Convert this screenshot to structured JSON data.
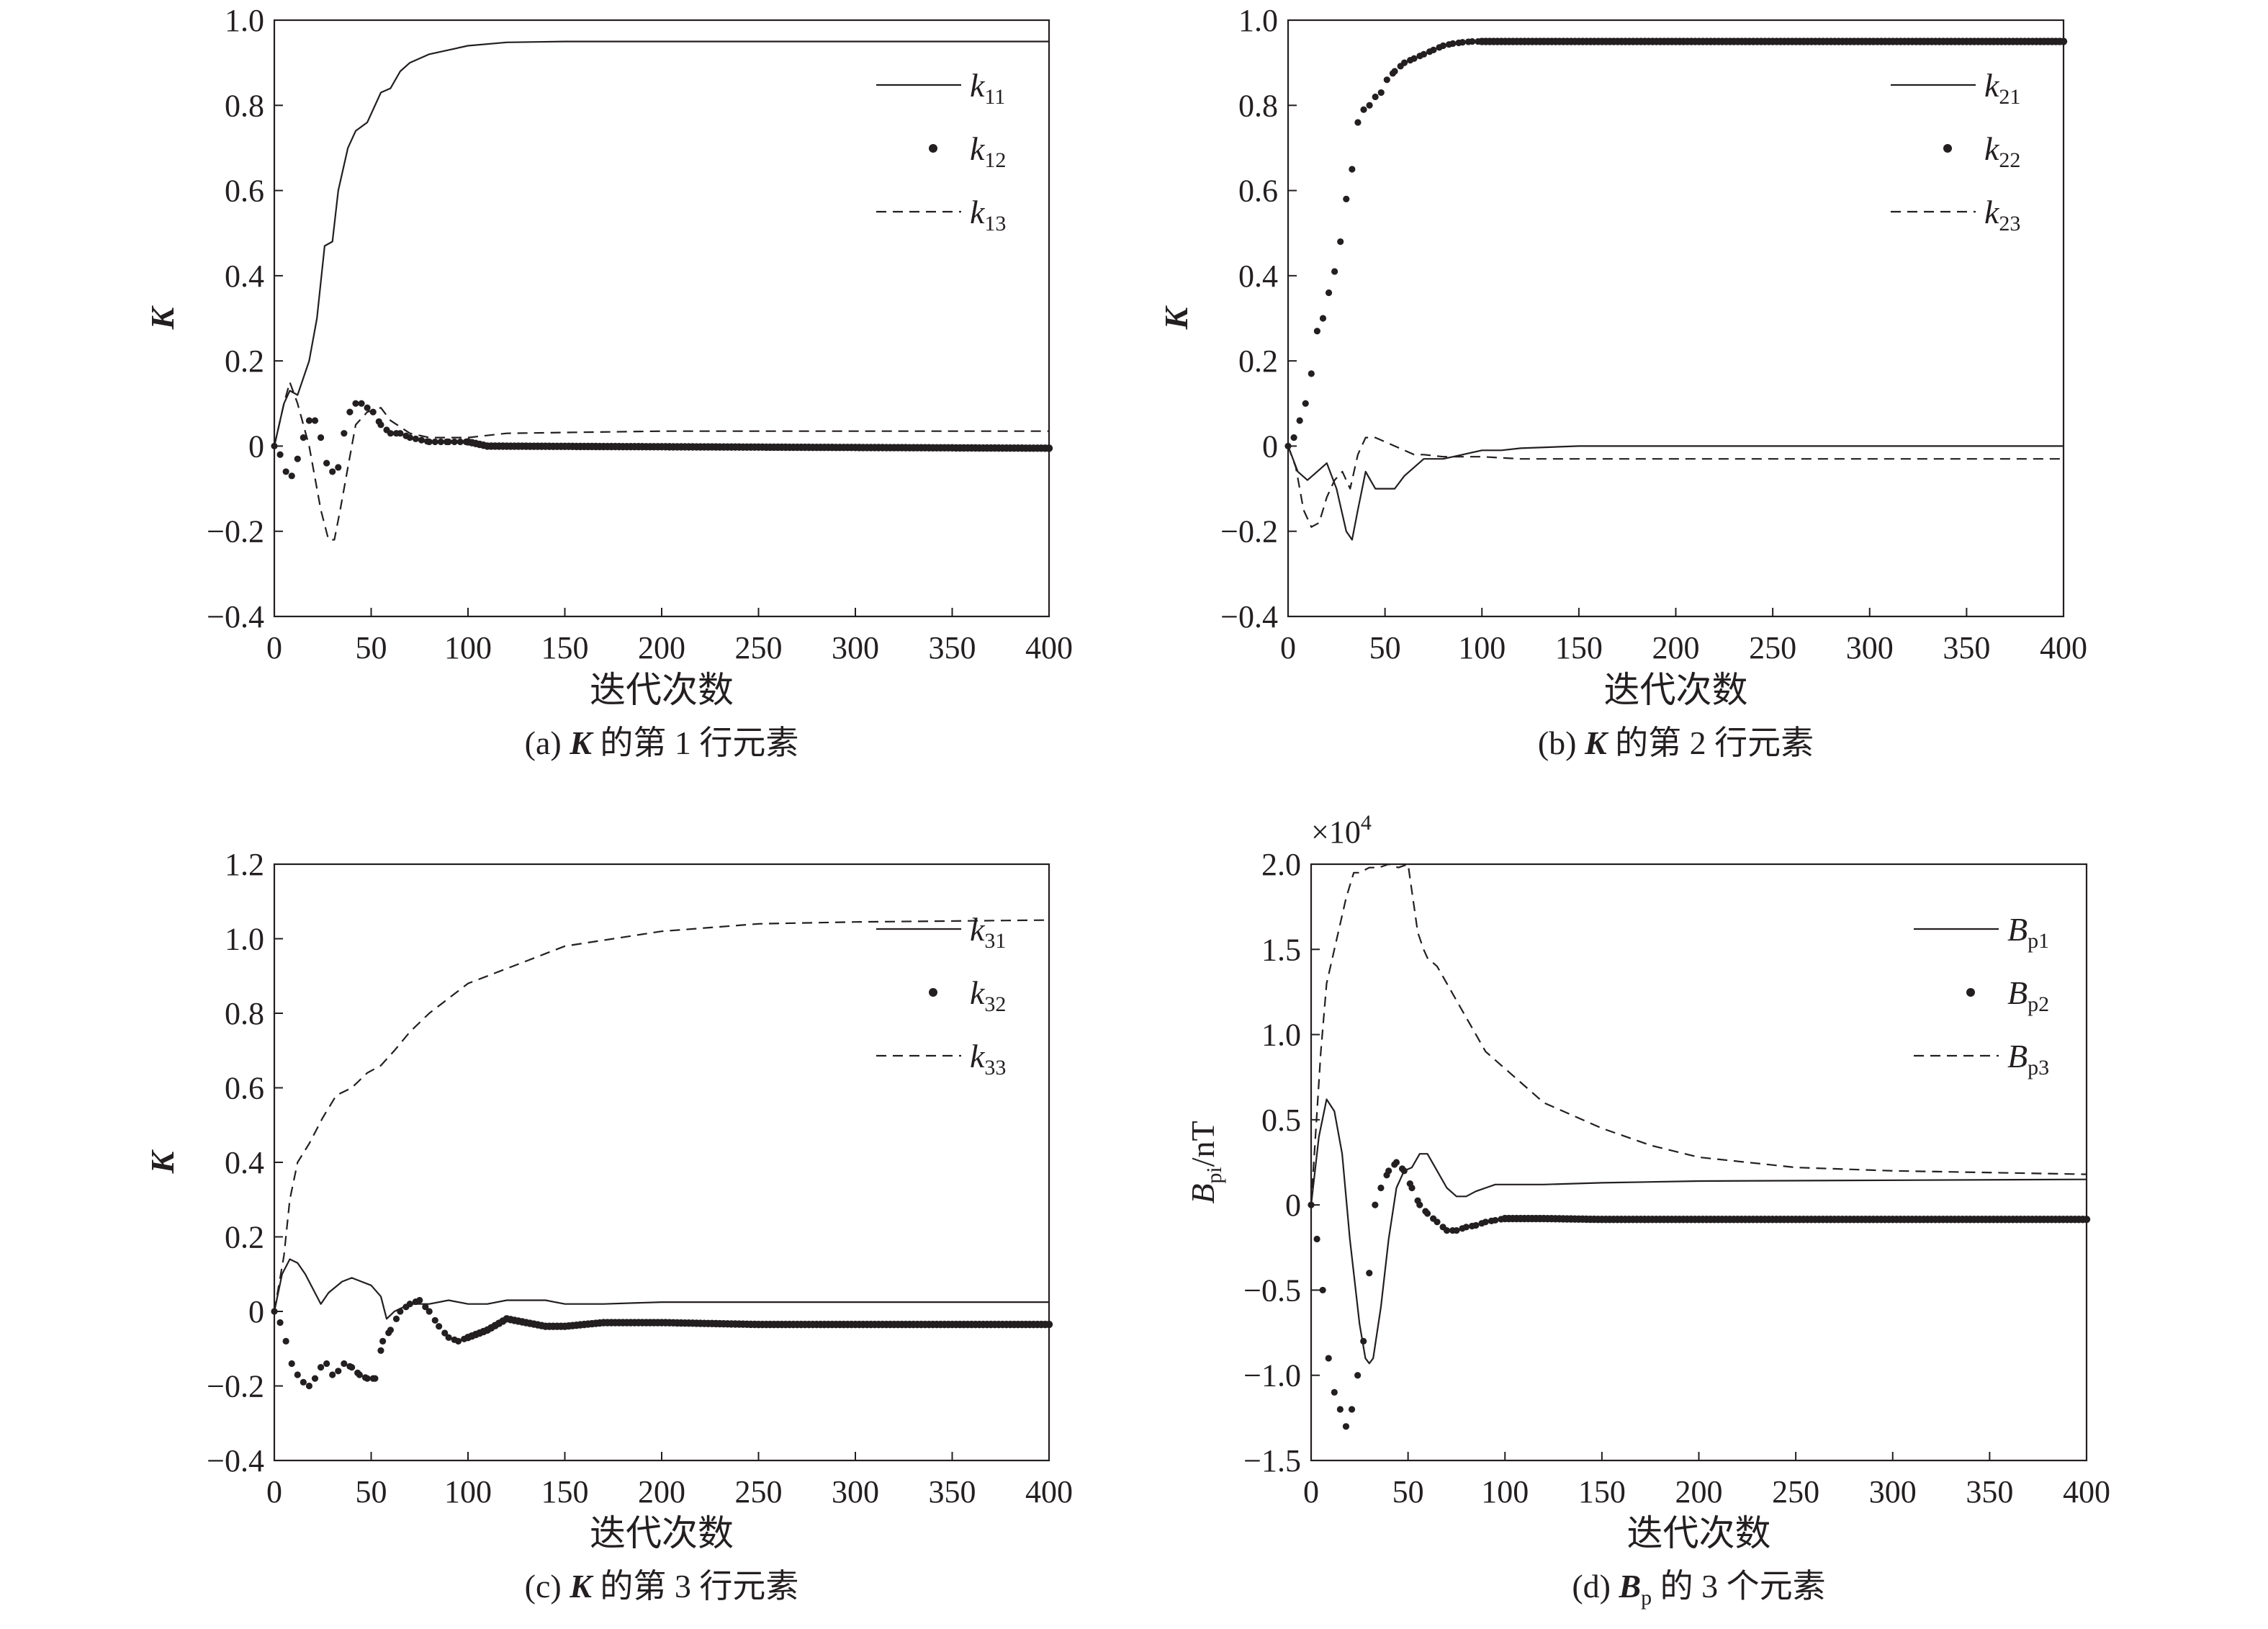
{
  "chart_data": [
    {
      "type": "line",
      "caption": {
        "pre": "(a) ",
        "bold": "K",
        "post": " 的第 1 行元素"
      },
      "xlabel": "迭代次数",
      "ylabel": "K",
      "xlim": [
        0,
        400
      ],
      "ylim": [
        -0.4,
        1.0
      ],
      "xticks": [
        0,
        50,
        100,
        150,
        200,
        250,
        300,
        350,
        400
      ],
      "yticks": [
        1.0,
        0.8,
        0.6,
        0.4,
        0.2,
        0,
        -0.2,
        -0.4
      ],
      "ytick_labels": [
        "1.0",
        "0.8",
        "0.6",
        "0.4",
        "0.2",
        "0",
        "−0.2",
        "−0.4"
      ],
      "legend_position": "top-right",
      "series": [
        {
          "name": "k",
          "sub": "11",
          "style": "solid",
          "x": [
            0,
            5,
            8,
            12,
            18,
            22,
            26,
            30,
            33,
            38,
            42,
            48,
            55,
            60,
            65,
            70,
            80,
            90,
            100,
            120,
            150,
            200,
            400
          ],
          "y": [
            0,
            0.1,
            0.13,
            0.12,
            0.2,
            0.3,
            0.47,
            0.48,
            0.6,
            0.7,
            0.74,
            0.76,
            0.83,
            0.84,
            0.88,
            0.9,
            0.92,
            0.93,
            0.94,
            0.948,
            0.95,
            0.95,
            0.95
          ]
        },
        {
          "name": "k",
          "sub": "12",
          "style": "dots",
          "x": [
            0,
            3,
            6,
            9,
            12,
            15,
            18,
            21,
            24,
            27,
            30,
            33,
            36,
            39,
            42,
            45,
            48,
            51,
            55,
            60,
            65,
            70,
            80,
            90,
            100,
            110,
            400
          ],
          "y": [
            0,
            -0.02,
            -0.06,
            -0.07,
            -0.03,
            0.02,
            0.06,
            0.06,
            0.02,
            -0.04,
            -0.06,
            -0.05,
            0.03,
            0.08,
            0.1,
            0.1,
            0.09,
            0.08,
            0.05,
            0.03,
            0.03,
            0.02,
            0.01,
            0.01,
            0.01,
            0.0,
            -0.005
          ]
        },
        {
          "name": "k",
          "sub": "13",
          "style": "dashed",
          "x": [
            0,
            5,
            8,
            12,
            18,
            24,
            28,
            31,
            34,
            38,
            42,
            48,
            55,
            60,
            70,
            80,
            100,
            120,
            200,
            400
          ],
          "y": [
            0,
            0.1,
            0.15,
            0.1,
            0.0,
            -0.15,
            -0.22,
            -0.22,
            -0.15,
            -0.05,
            0.05,
            0.08,
            0.09,
            0.06,
            0.03,
            0.02,
            0.02,
            0.03,
            0.035,
            0.035
          ]
        }
      ]
    },
    {
      "type": "line",
      "caption": {
        "pre": "(b) ",
        "bold": "K",
        "post": " 的第 2 行元素"
      },
      "xlabel": "迭代次数",
      "ylabel": "K",
      "xlim": [
        0,
        400
      ],
      "ylim": [
        -0.4,
        1.0
      ],
      "xticks": [
        0,
        50,
        100,
        150,
        200,
        250,
        300,
        350,
        400
      ],
      "yticks": [
        1.0,
        0.8,
        0.6,
        0.4,
        0.2,
        0,
        -0.2,
        -0.4
      ],
      "ytick_labels": [
        "1.0",
        "0.8",
        "0.6",
        "0.4",
        "0.2",
        "0",
        "−0.2",
        "−0.4"
      ],
      "legend_position": "top-right",
      "series": [
        {
          "name": "k",
          "sub": "21",
          "style": "solid",
          "x": [
            0,
            5,
            10,
            15,
            20,
            25,
            30,
            33,
            36,
            40,
            45,
            50,
            55,
            60,
            70,
            80,
            90,
            100,
            110,
            120,
            150,
            400
          ],
          "y": [
            0,
            -0.06,
            -0.08,
            -0.06,
            -0.04,
            -0.1,
            -0.2,
            -0.22,
            -0.15,
            -0.06,
            -0.1,
            -0.1,
            -0.1,
            -0.07,
            -0.03,
            -0.03,
            -0.02,
            -0.01,
            -0.01,
            -0.005,
            0.0,
            0.0
          ]
        },
        {
          "name": "k",
          "sub": "22",
          "style": "dots",
          "x": [
            0,
            3,
            6,
            9,
            12,
            15,
            18,
            21,
            24,
            27,
            30,
            33,
            36,
            39,
            42,
            45,
            48,
            51,
            55,
            60,
            65,
            70,
            75,
            80,
            85,
            90,
            95,
            100,
            110,
            120,
            400
          ],
          "y": [
            0,
            0.02,
            0.06,
            0.1,
            0.17,
            0.27,
            0.3,
            0.36,
            0.41,
            0.48,
            0.58,
            0.65,
            0.76,
            0.79,
            0.8,
            0.82,
            0.83,
            0.86,
            0.88,
            0.9,
            0.91,
            0.92,
            0.93,
            0.94,
            0.945,
            0.948,
            0.95,
            0.95,
            0.95,
            0.95,
            0.95
          ]
        },
        {
          "name": "k",
          "sub": "23",
          "style": "dashed",
          "x": [
            0,
            4,
            8,
            12,
            16,
            20,
            24,
            28,
            32,
            36,
            40,
            45,
            50,
            55,
            60,
            65,
            70,
            80,
            100,
            120,
            400
          ],
          "y": [
            0,
            -0.05,
            -0.15,
            -0.19,
            -0.18,
            -0.12,
            -0.08,
            -0.06,
            -0.1,
            -0.02,
            0.02,
            0.02,
            0.01,
            0.0,
            -0.01,
            -0.02,
            -0.02,
            -0.025,
            -0.025,
            -0.03,
            -0.03
          ]
        }
      ]
    },
    {
      "type": "line",
      "caption": {
        "pre": "(c) ",
        "bold": "K",
        "post": " 的第 3 行元素"
      },
      "xlabel": "迭代次数",
      "ylabel": "K",
      "xlim": [
        0,
        400
      ],
      "ylim": [
        -0.4,
        1.2
      ],
      "xticks": [
        0,
        50,
        100,
        150,
        200,
        250,
        300,
        350,
        400
      ],
      "yticks": [
        1.2,
        1.0,
        0.8,
        0.6,
        0.4,
        0.2,
        0,
        -0.2,
        -0.4
      ],
      "ytick_labels": [
        "1.2",
        "1.0",
        "0.8",
        "0.6",
        "0.4",
        "0.2",
        "0",
        "−0.2",
        "−0.4"
      ],
      "legend_position": "top-right",
      "series": [
        {
          "name": "k",
          "sub": "31",
          "style": "solid",
          "x": [
            0,
            4,
            8,
            12,
            16,
            20,
            24,
            28,
            35,
            40,
            45,
            50,
            55,
            58,
            62,
            70,
            80,
            90,
            100,
            110,
            120,
            130,
            140,
            150,
            170,
            200,
            400
          ],
          "y": [
            0,
            0.1,
            0.14,
            0.13,
            0.1,
            0.06,
            0.02,
            0.05,
            0.08,
            0.09,
            0.08,
            0.07,
            0.04,
            -0.02,
            0.0,
            0.02,
            0.02,
            0.03,
            0.02,
            0.02,
            0.03,
            0.03,
            0.03,
            0.02,
            0.02,
            0.025,
            0.025
          ]
        },
        {
          "name": "k",
          "sub": "32",
          "style": "dots",
          "x": [
            0,
            3,
            6,
            9,
            12,
            15,
            18,
            21,
            24,
            27,
            30,
            33,
            36,
            40,
            44,
            48,
            52,
            56,
            60,
            65,
            70,
            75,
            80,
            85,
            90,
            95,
            100,
            110,
            120,
            130,
            140,
            150,
            170,
            200,
            250,
            400
          ],
          "y": [
            0,
            -0.03,
            -0.08,
            -0.14,
            -0.17,
            -0.19,
            -0.2,
            -0.18,
            -0.15,
            -0.14,
            -0.17,
            -0.16,
            -0.14,
            -0.15,
            -0.17,
            -0.18,
            -0.18,
            -0.08,
            -0.05,
            0.0,
            0.02,
            0.03,
            0.0,
            -0.04,
            -0.07,
            -0.08,
            -0.07,
            -0.05,
            -0.02,
            -0.03,
            -0.04,
            -0.04,
            -0.03,
            -0.03,
            -0.035,
            -0.035
          ]
        },
        {
          "name": "k",
          "sub": "33",
          "style": "dashed",
          "x": [
            0,
            5,
            8,
            12,
            18,
            25,
            32,
            40,
            48,
            55,
            62,
            70,
            80,
            90,
            100,
            110,
            120,
            130,
            140,
            150,
            175,
            200,
            225,
            250,
            300,
            400
          ],
          "y": [
            0,
            0.15,
            0.3,
            0.4,
            0.45,
            0.52,
            0.58,
            0.6,
            0.64,
            0.66,
            0.7,
            0.75,
            0.8,
            0.84,
            0.88,
            0.9,
            0.92,
            0.94,
            0.96,
            0.98,
            1.0,
            1.02,
            1.03,
            1.04,
            1.045,
            1.05
          ]
        }
      ]
    },
    {
      "type": "line",
      "caption": {
        "pre": "(d) ",
        "bold": "B",
        "bold_sub": "p",
        "post": " 的 3 个元素"
      },
      "xlabel": "迭代次数",
      "ylabel": {
        "main": "B",
        "sub": "pi",
        "post": "/nT"
      },
      "multiplier": {
        "main": "×10",
        "exp": "4"
      },
      "xlim": [
        0,
        400
      ],
      "ylim": [
        -1.5,
        2.0
      ],
      "xticks": [
        0,
        50,
        100,
        150,
        200,
        250,
        300,
        350,
        400
      ],
      "yticks": [
        2.0,
        1.5,
        1.0,
        0.5,
        0,
        -0.5,
        -1.0,
        -1.5
      ],
      "ytick_labels": [
        "2.0",
        "1.5",
        "1.0",
        "0.5",
        "0",
        "−0.5",
        "−1.0",
        "−1.5"
      ],
      "legend_position": "top-right",
      "series": [
        {
          "name": "B",
          "sub": "p1",
          "style": "solid",
          "x": [
            0,
            4,
            8,
            12,
            16,
            20,
            25,
            28,
            30,
            32,
            36,
            40,
            44,
            48,
            52,
            56,
            60,
            65,
            70,
            75,
            80,
            85,
            90,
            95,
            100,
            110,
            120,
            150,
            200,
            400
          ],
          "y": [
            0,
            0.4,
            0.62,
            0.55,
            0.3,
            -0.2,
            -0.7,
            -0.9,
            -0.93,
            -0.9,
            -0.6,
            -0.2,
            0.1,
            0.2,
            0.22,
            0.3,
            0.3,
            0.2,
            0.1,
            0.05,
            0.05,
            0.08,
            0.1,
            0.12,
            0.12,
            0.12,
            0.12,
            0.13,
            0.14,
            0.15
          ]
        },
        {
          "name": "B",
          "sub": "p2",
          "style": "dots",
          "x": [
            0,
            3,
            6,
            9,
            12,
            15,
            18,
            21,
            24,
            27,
            30,
            33,
            36,
            40,
            44,
            48,
            52,
            56,
            60,
            65,
            70,
            75,
            80,
            85,
            90,
            95,
            100,
            110,
            120,
            150,
            200,
            400
          ],
          "y": [
            0,
            -0.2,
            -0.5,
            -0.9,
            -1.1,
            -1.2,
            -1.3,
            -1.2,
            -1.0,
            -0.8,
            -0.4,
            0.0,
            0.1,
            0.2,
            0.25,
            0.2,
            0.1,
            0.0,
            -0.05,
            -0.1,
            -0.15,
            -0.15,
            -0.13,
            -0.12,
            -0.1,
            -0.09,
            -0.08,
            -0.08,
            -0.08,
            -0.085,
            -0.085,
            -0.085
          ]
        },
        {
          "name": "B",
          "sub": "p3",
          "style": "dashed",
          "x": [
            0,
            5,
            8,
            12,
            18,
            22,
            25,
            30,
            35,
            40,
            45,
            50,
            55,
            58,
            60,
            65,
            70,
            75,
            80,
            85,
            90,
            100,
            110,
            120,
            130,
            150,
            175,
            200,
            250,
            300,
            400
          ],
          "y": [
            0,
            0.9,
            1.3,
            1.5,
            1.8,
            1.95,
            1.95,
            1.98,
            1.98,
            2.0,
            1.98,
            2.0,
            1.6,
            1.5,
            1.45,
            1.4,
            1.3,
            1.2,
            1.1,
            1.0,
            0.9,
            0.8,
            0.7,
            0.6,
            0.55,
            0.45,
            0.35,
            0.28,
            0.22,
            0.2,
            0.18
          ]
        }
      ]
    }
  ]
}
